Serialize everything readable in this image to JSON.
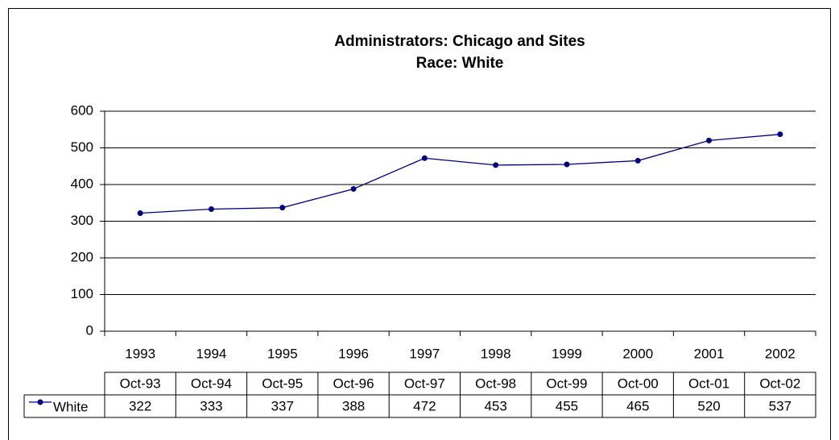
{
  "chart_data": {
    "type": "line",
    "title": "Administrators: Chicago and Sites",
    "subtitle": "Race: White",
    "categories": [
      "1993",
      "1994",
      "1995",
      "1996",
      "1997",
      "1998",
      "1999",
      "2000",
      "2001",
      "2002"
    ],
    "table_columns": [
      "Oct-93",
      "Oct-94",
      "Oct-95",
      "Oct-96",
      "Oct-97",
      "Oct-98",
      "Oct-99",
      "Oct-00",
      "Oct-01",
      "Oct-02"
    ],
    "series": [
      {
        "name": "White",
        "color": "#000080",
        "values": [
          322,
          333,
          337,
          388,
          472,
          453,
          455,
          465,
          520,
          537
        ]
      }
    ],
    "ylim": [
      0,
      600
    ],
    "yticks": [
      0,
      100,
      200,
      300,
      400,
      500,
      600
    ],
    "grid": true
  }
}
